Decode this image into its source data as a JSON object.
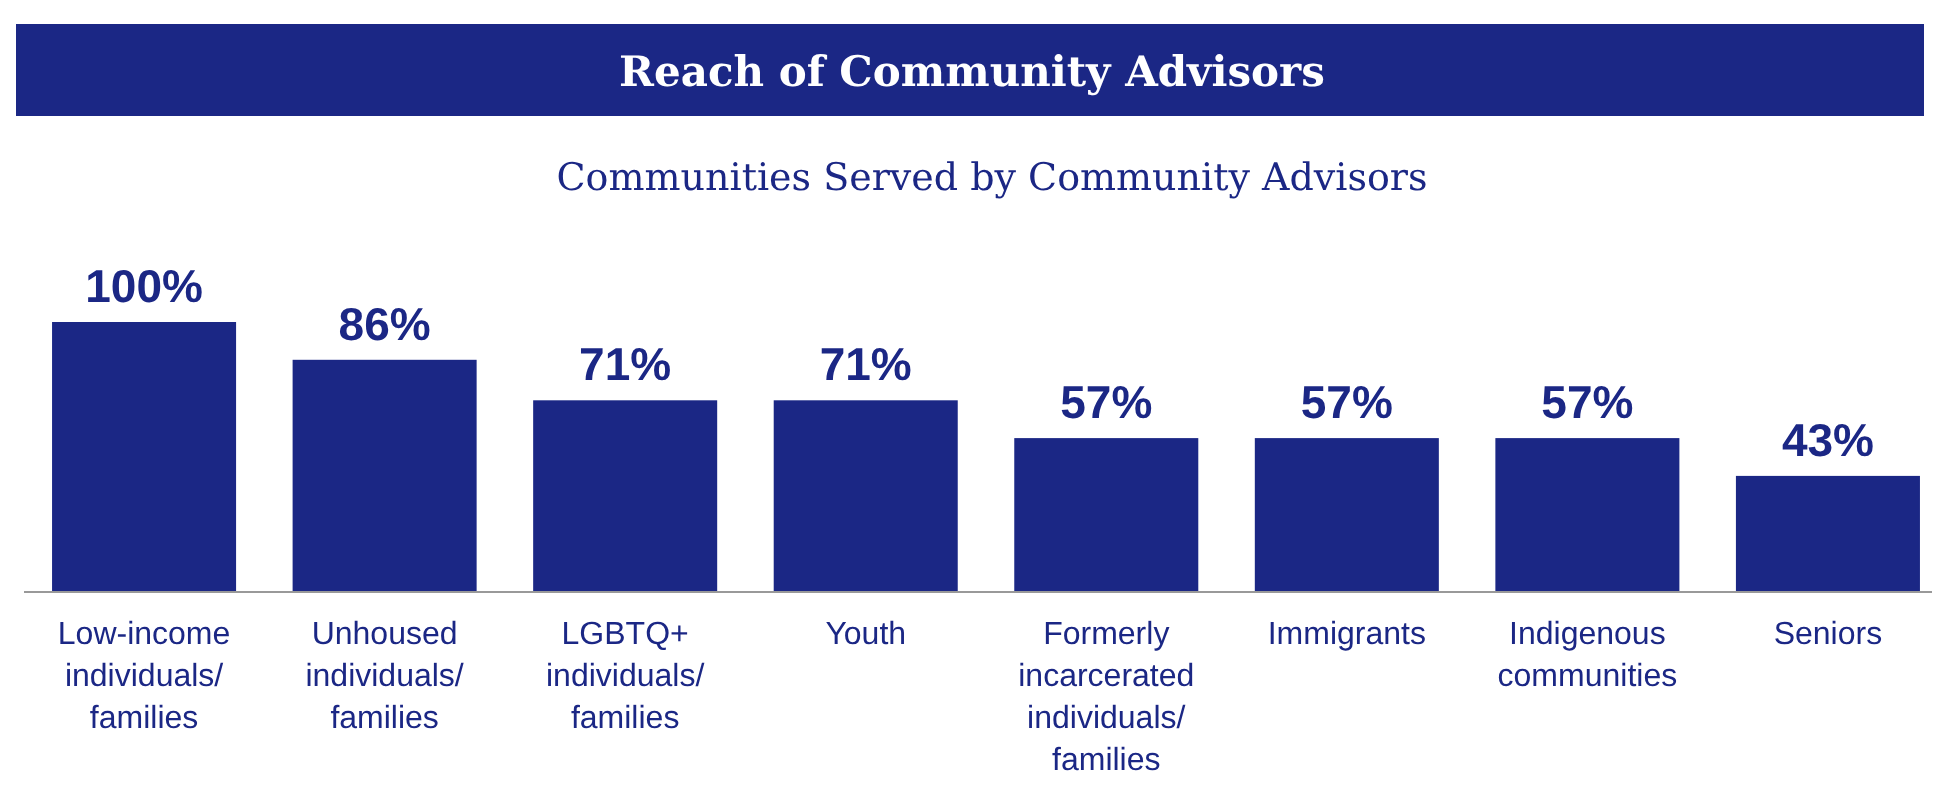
{
  "chart_data": {
    "type": "bar",
    "title": "Reach of Community Advisors",
    "subtitle": "Communities Served by Community Advisors",
    "categories": [
      "Low-income individuals/ families",
      "Unhoused individuals/ families",
      "LGBTQ+ individuals/ families",
      "Youth",
      "Formerly incarcerated individuals/ families",
      "Immigrants",
      "Indigenous communities",
      "Seniors"
    ],
    "values": [
      100,
      86,
      71,
      71,
      57,
      57,
      57,
      43
    ],
    "value_labels": [
      "100%",
      "86%",
      "71%",
      "71%",
      "57%",
      "57%",
      "57%",
      "43%"
    ],
    "color": "#1b2785",
    "ylim": [
      0,
      100
    ],
    "tick_labels": "x"
  }
}
